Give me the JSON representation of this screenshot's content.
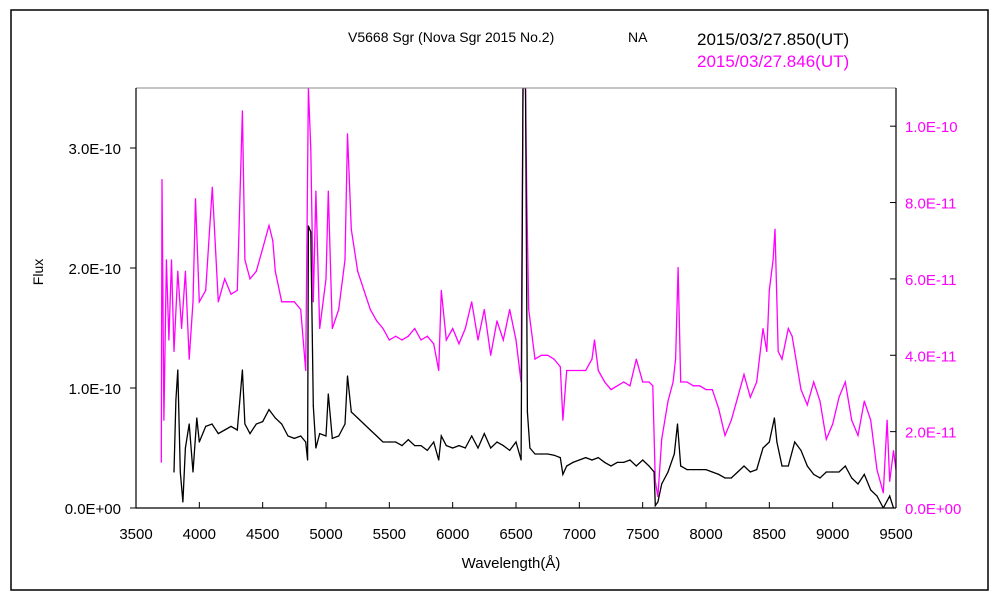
{
  "chart_data": {
    "type": "line",
    "title": "V5668 Sgr (Nova Sgr 2015 No.2)",
    "title_suffix": "NA",
    "xlabel": "Wavelength(Å)",
    "ylabel": "Flux",
    "xlim": [
      3500,
      9500
    ],
    "xticks": [
      "3500",
      "4000",
      "4500",
      "5000",
      "5500",
      "6000",
      "6500",
      "7000",
      "7500",
      "8000",
      "8500",
      "9000",
      "9500"
    ],
    "ylim_left": [
      0,
      3.5e-10
    ],
    "yticks_left": [
      {
        "v": 0,
        "label": "0.0E+00"
      },
      {
        "v": 1e-10,
        "label": "1.0E-10"
      },
      {
        "v": 2e-10,
        "label": "2.0E-10"
      },
      {
        "v": 3e-10,
        "label": "3.0E-10"
      }
    ],
    "ylim_right": [
      0,
      1.1e-10
    ],
    "yticks_right": [
      {
        "v": 0,
        "label": "0.0E+00"
      },
      {
        "v": 2e-11,
        "label": "2.0E-11"
      },
      {
        "v": 4e-11,
        "label": "4.0E-11"
      },
      {
        "v": 6e-11,
        "label": "6.0E-11"
      },
      {
        "v": 8e-11,
        "label": "8.0E-11"
      },
      {
        "v": 1e-10,
        "label": "1.0E-10"
      }
    ],
    "grid": false,
    "legend_placement": "top-right",
    "series": [
      {
        "name": "2015/03/27.850(UT)",
        "color": "#000000",
        "axis": "left",
        "x": [
          3800,
          3815,
          3830,
          3850,
          3870,
          3890,
          3920,
          3950,
          3980,
          4000,
          4050,
          4100,
          4150,
          4200,
          4250,
          4300,
          4340,
          4360,
          4400,
          4450,
          4500,
          4550,
          4600,
          4650,
          4700,
          4750,
          4800,
          4840,
          4855,
          4861,
          4880,
          4900,
          4920,
          4950,
          5000,
          5018,
          5050,
          5100,
          5150,
          5170,
          5200,
          5250,
          5300,
          5350,
          5400,
          5450,
          5500,
          5550,
          5600,
          5650,
          5700,
          5750,
          5800,
          5850,
          5890,
          5910,
          5950,
          6000,
          6050,
          6100,
          6150,
          6200,
          6250,
          6300,
          6350,
          6400,
          6450,
          6500,
          6540,
          6555,
          6575,
          6590,
          6610,
          6650,
          6700,
          6750,
          6800,
          6850,
          6870,
          6900,
          6950,
          7000,
          7050,
          7100,
          7150,
          7200,
          7250,
          7300,
          7350,
          7400,
          7450,
          7500,
          7550,
          7590,
          7600,
          7620,
          7650,
          7700,
          7750,
          7775,
          7800,
          7850,
          7900,
          7950,
          8000,
          8050,
          8100,
          8150,
          8200,
          8250,
          8300,
          8350,
          8400,
          8450,
          8500,
          8540,
          8560,
          8600,
          8650,
          8700,
          8750,
          8800,
          8850,
          8900,
          8950,
          9000,
          9050,
          9100,
          9150,
          9200,
          9250,
          9300,
          9350,
          9400,
          9450,
          9480
        ],
        "y": [
          3e-11,
          9e-11,
          1.15e-10,
          3e-11,
          5e-12,
          5e-11,
          7e-11,
          3e-11,
          7.5e-11,
          5.5e-11,
          6.8e-11,
          7e-11,
          6.2e-11,
          6.5e-11,
          6.8e-11,
          6.5e-11,
          1.15e-10,
          7e-11,
          6.2e-11,
          7e-11,
          7.2e-11,
          8.2e-11,
          7.5e-11,
          7e-11,
          6e-11,
          5.8e-11,
          6e-11,
          5.5e-11,
          4e-11,
          2.35e-10,
          2.3e-10,
          8.5e-11,
          5e-11,
          6.2e-11,
          6e-11,
          9.5e-11,
          5.8e-11,
          6e-11,
          7e-11,
          1.1e-10,
          8e-11,
          7.5e-11,
          7e-11,
          6.5e-11,
          6e-11,
          5.5e-11,
          5.5e-11,
          5.5e-11,
          5.2e-11,
          5.7e-11,
          5.2e-11,
          5.2e-11,
          4.8e-11,
          5.5e-11,
          4e-11,
          6e-11,
          5.2e-11,
          5e-11,
          5.2e-11,
          5e-11,
          6e-11,
          5e-11,
          6.2e-11,
          5e-11,
          5.5e-11,
          5.2e-11,
          4.8e-11,
          5.5e-11,
          4e-11,
          3.5e-10,
          3.5e-10,
          8e-11,
          5e-11,
          4.5e-11,
          4.5e-11,
          4.5e-11,
          4.4e-11,
          4.2e-11,
          2.8e-11,
          3.5e-11,
          3.8e-11,
          4e-11,
          4.2e-11,
          4e-11,
          4.2e-11,
          3.8e-11,
          3.5e-11,
          3.8e-11,
          3.8e-11,
          4e-11,
          3.5e-11,
          4e-11,
          3.5e-11,
          3e-11,
          2e-12,
          5e-12,
          2e-11,
          3e-11,
          4.5e-11,
          7e-11,
          3.5e-11,
          3.2e-11,
          3.2e-11,
          3.2e-11,
          3.2e-11,
          3e-11,
          2.8e-11,
          2.5e-11,
          2.5e-11,
          3e-11,
          3.5e-11,
          3e-11,
          3.2e-11,
          5e-11,
          5.5e-11,
          7.5e-11,
          5.5e-11,
          3.5e-11,
          3.5e-11,
          5.5e-11,
          4.8e-11,
          3.5e-11,
          2.8e-11,
          2.5e-11,
          3e-11,
          3e-11,
          3e-11,
          3.5e-11,
          2.5e-11,
          2e-11,
          2.8e-11,
          1.5e-11,
          1e-11,
          0,
          1e-11,
          0
        ]
      },
      {
        "name": "2015/03/27.846(UT)",
        "color": "#ff00ff",
        "axis": "right",
        "x": [
          3700,
          3705,
          3720,
          3740,
          3760,
          3780,
          3800,
          3830,
          3860,
          3890,
          3920,
          3950,
          3970,
          4000,
          4050,
          4102,
          4150,
          4200,
          4250,
          4300,
          4340,
          4360,
          4400,
          4450,
          4500,
          4550,
          4580,
          4600,
          4650,
          4700,
          4750,
          4800,
          4840,
          4861,
          4880,
          4900,
          4920,
          4950,
          5000,
          5018,
          5050,
          5100,
          5150,
          5170,
          5200,
          5250,
          5300,
          5350,
          5400,
          5450,
          5500,
          5550,
          5600,
          5650,
          5700,
          5750,
          5800,
          5850,
          5890,
          5910,
          5950,
          6000,
          6050,
          6100,
          6150,
          6200,
          6250,
          6300,
          6350,
          6400,
          6450,
          6500,
          6540,
          6555,
          6575,
          6585,
          6600,
          6650,
          6700,
          6750,
          6800,
          6850,
          6870,
          6900,
          6950,
          7000,
          7050,
          7100,
          7120,
          7150,
          7200,
          7250,
          7300,
          7350,
          7400,
          7450,
          7500,
          7550,
          7580,
          7600,
          7620,
          7650,
          7700,
          7740,
          7760,
          7780,
          7800,
          7850,
          7900,
          7950,
          8000,
          8050,
          8100,
          8150,
          8200,
          8250,
          8300,
          8350,
          8400,
          8450,
          8480,
          8500,
          8530,
          8545,
          8570,
          8600,
          8650,
          8680,
          8700,
          8750,
          8800,
          8850,
          8900,
          8950,
          9000,
          9050,
          9100,
          9150,
          9200,
          9250,
          9300,
          9350,
          9400,
          9430,
          9450,
          9480,
          9500
        ],
        "y": [
          1.2e-11,
          8.6e-11,
          2.3e-11,
          6.5e-11,
          4.4e-11,
          6.5e-11,
          4.1e-11,
          6.2e-11,
          4.7e-11,
          6.2e-11,
          3.9e-11,
          5.4e-11,
          8.1e-11,
          5.4e-11,
          5.7e-11,
          8.4e-11,
          5.4e-11,
          6e-11,
          5.6e-11,
          5.7e-11,
          1.04e-10,
          6.5e-11,
          6e-11,
          6.2e-11,
          6.8e-11,
          7.4e-11,
          7e-11,
          6.2e-11,
          5.4e-11,
          5.4e-11,
          5.4e-11,
          5.2e-11,
          3.6e-11,
          1.1e-10,
          9.4e-11,
          5.4e-11,
          8.3e-11,
          4.7e-11,
          6e-11,
          8.3e-11,
          4.7e-11,
          5.2e-11,
          6.5e-11,
          9.8e-11,
          7.3e-11,
          6.2e-11,
          5.7e-11,
          5.2e-11,
          4.9e-11,
          4.7e-11,
          4.4e-11,
          4.5e-11,
          4.4e-11,
          4.5e-11,
          4.7e-11,
          4.4e-11,
          4.5e-11,
          4.3e-11,
          3.6e-11,
          5.7e-11,
          4.4e-11,
          4.7e-11,
          4.3e-11,
          4.7e-11,
          5.4e-11,
          4.4e-11,
          5.2e-11,
          4e-11,
          4.9e-11,
          4.4e-11,
          5.2e-11,
          4.4e-11,
          3.3e-11,
          1.1e-10,
          1.1e-10,
          8.1e-11,
          5.2e-11,
          3.9e-11,
          4e-11,
          4e-11,
          3.9e-11,
          3.7e-11,
          2.3e-11,
          3.6e-11,
          3.6e-11,
          3.6e-11,
          3.6e-11,
          3.9e-11,
          4.4e-11,
          3.6e-11,
          3.3e-11,
          3.1e-11,
          3.2e-11,
          3.3e-11,
          3.2e-11,
          3.9e-11,
          3.3e-11,
          3.3e-11,
          3.2e-11,
          7e-12,
          3e-12,
          1.8e-11,
          2.8e-11,
          3.3e-11,
          3.9e-11,
          6.3e-11,
          3.3e-11,
          3.3e-11,
          3.2e-11,
          3.2e-11,
          3.1e-11,
          3.1e-11,
          2.6e-11,
          1.9e-11,
          2.3e-11,
          2.9e-11,
          3.5e-11,
          2.9e-11,
          3.3e-11,
          4.7e-11,
          4.1e-11,
          5.7e-11,
          6.5e-11,
          7.3e-11,
          4.1e-11,
          3.9e-11,
          4.7e-11,
          4.5e-11,
          4.1e-11,
          3.1e-11,
          2.7e-11,
          3.3e-11,
          2.8e-11,
          1.8e-11,
          2.2e-11,
          2.9e-11,
          3.3e-11,
          2.3e-11,
          1.9e-11,
          2.8e-11,
          2.3e-11,
          1e-11,
          4e-12,
          2.3e-11,
          7e-12,
          1.5e-11,
          1e-11
        ]
      }
    ]
  }
}
